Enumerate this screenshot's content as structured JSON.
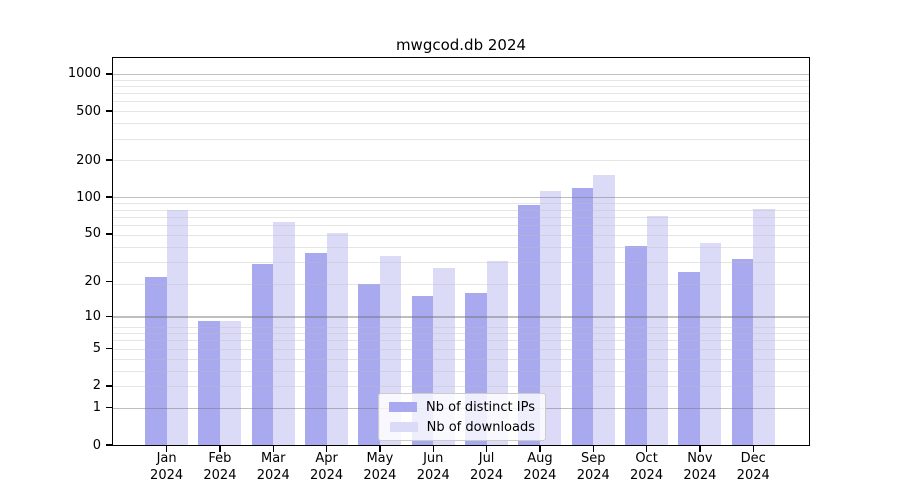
{
  "title": "mwgcod.db 2024",
  "chart_data": {
    "type": "bar",
    "title": "mwgcod.db 2024",
    "categories": [
      "Jan 2024",
      "Feb 2024",
      "Mar 2024",
      "Apr 2024",
      "May 2024",
      "Jun 2024",
      "Jul 2024",
      "Aug 2024",
      "Sep 2024",
      "Oct 2024",
      "Nov 2024",
      "Dec 2024"
    ],
    "series": [
      {
        "name": "Nb of distinct IPs",
        "color": "#a9a9f0",
        "values": [
          22,
          9,
          28,
          35,
          19,
          15,
          16,
          87,
          118,
          40,
          24,
          31
        ]
      },
      {
        "name": "Nb of downloads",
        "color": "#dbdbf8",
        "values": [
          78,
          9,
          63,
          51,
          33,
          26,
          30,
          112,
          152,
          70,
          42,
          80
        ]
      }
    ],
    "yscale": "log10(1+x)",
    "yticks": [
      0,
      1,
      2,
      5,
      10,
      20,
      50,
      100,
      200,
      500,
      1000
    ],
    "ytick_labels": [
      "0",
      "1",
      "2",
      "5",
      "10",
      "20",
      "50",
      "100",
      "200",
      "500",
      "1000"
    ],
    "major_grid_values": [
      1,
      10,
      100,
      1000
    ],
    "ylim": [
      0,
      1350
    ],
    "xlabel": "",
    "ylabel": "",
    "grid": true,
    "legend_position": "lower center",
    "grid_major_color": "#b4b4b4",
    "grid_minor_color": "#e6e6e6"
  }
}
